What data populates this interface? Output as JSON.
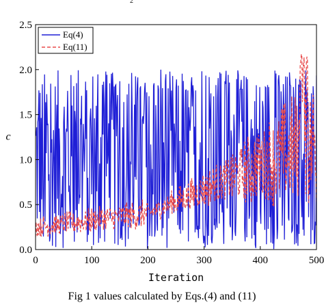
{
  "top_mark": "2",
  "caption": "Fig 1 values calculated by Eqs.(4) and (11)",
  "chart_data": {
    "type": "line",
    "xlabel": "Iteration",
    "ylabel": "c",
    "xlim": [
      0,
      500
    ],
    "ylim": [
      0,
      2.5
    ],
    "x_ticks": [
      0,
      100,
      200,
      300,
      400,
      500
    ],
    "y_ticks": [
      0.0,
      0.5,
      1.0,
      1.5,
      2.0,
      2.5
    ],
    "x_tick_labels": [
      "0",
      "100",
      "200",
      "300",
      "400",
      "500"
    ],
    "y_tick_labels": [
      "0.0",
      "0.5",
      "1.0",
      "1.5",
      "2.0",
      "2.5"
    ],
    "legend_position": "top-left",
    "grid": false,
    "series": [
      {
        "name": "Eq(4)",
        "color": "#1f1fd6",
        "style": "solid",
        "description_values": "chaotic oscillation between 0.0 and 2.0 across all 500 iterations"
      },
      {
        "name": "Eq(11)",
        "color": "#e84a4a",
        "style": "dashed",
        "description_values": "oscillation that grows from about 0.1-0.4 near iteration 0 to about 0.3-2.2 near iteration 480"
      }
    ]
  }
}
